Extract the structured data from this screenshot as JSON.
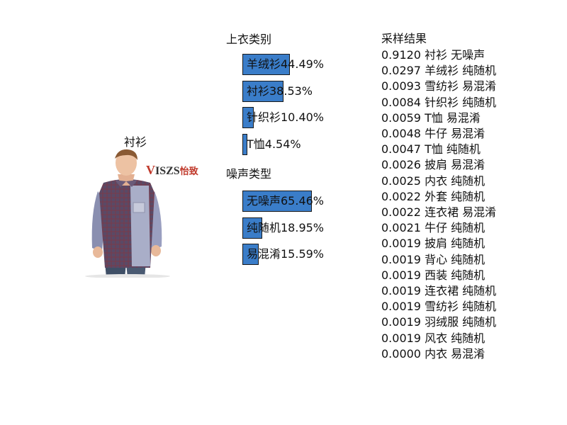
{
  "photo": {
    "caption": "衬衫",
    "brand_mark": "V",
    "brand_text": "ISZS",
    "brand_cn": "怡致"
  },
  "chart_data": [
    {
      "type": "bar",
      "title": "上衣类别",
      "categories": [
        "羊绒衫",
        "衬衫",
        "针织衫",
        "T恤"
      ],
      "values": [
        44.49,
        38.53,
        10.4,
        4.54
      ],
      "labels": [
        "羊绒衫44.49%",
        "衬衫38.53%",
        "针织衫10.40%",
        "T恤4.54%"
      ],
      "unit": "%",
      "orientation": "horizontal",
      "color": "#3a7dc9",
      "xlim": [
        0,
        100
      ]
    },
    {
      "type": "bar",
      "title": "噪声类型",
      "categories": [
        "无噪声",
        "纯随机",
        "易混淆"
      ],
      "values": [
        65.46,
        18.95,
        15.59
      ],
      "labels": [
        "无噪声65.46%",
        "纯随机18.95%",
        "易混淆15.59%"
      ],
      "unit": "%",
      "orientation": "horizontal",
      "color": "#3a7dc9",
      "xlim": [
        0,
        100
      ]
    }
  ],
  "results": {
    "title": "采样结果",
    "rows": [
      "0.9120 衬衫 无噪声",
      "0.0297 羊绒衫 纯随机",
      "0.0093 雪纺衫 易混淆",
      "0.0084 针织衫 纯随机",
      "0.0059 T恤 易混淆",
      "0.0048 牛仔 易混淆",
      "0.0047 T恤 纯随机",
      "0.0026 披肩 易混淆",
      "0.0025 内衣 纯随机",
      "0.0022 外套 纯随机",
      "0.0022 连衣裙 易混淆",
      "0.0021 牛仔 纯随机",
      "0.0019 披肩 纯随机",
      "0.0019 背心 纯随机",
      "0.0019 西装 纯随机",
      "0.0019 连衣裙 纯随机",
      "0.0019 雪纺衫 纯随机",
      "0.0019 羽绒服 纯随机",
      "0.0019 风衣 纯随机",
      "0.0000 内衣 易混淆"
    ]
  }
}
